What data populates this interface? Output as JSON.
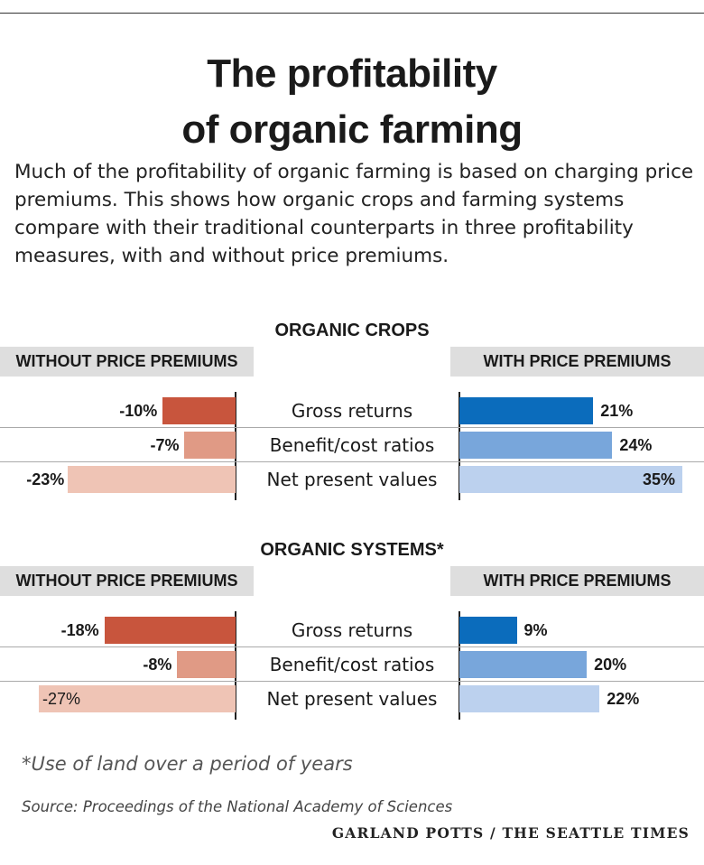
{
  "header": {
    "title_line1": "The profitability",
    "title_line2": "of organic farming",
    "intro": "Much of the profitability of organic farming is based on charging price premiums. This shows how organic crops and farming systems compare with their traditional counterparts in three profitability measures, with and without price premiums."
  },
  "colors": {
    "without_dark": "#c8553d",
    "without_mid": "#e09a85",
    "without_light": "#efc4b5",
    "with_dark": "#0b6cbc",
    "with_mid": "#78a6db",
    "with_light": "#bcd1ee",
    "header_bg": "#dedede"
  },
  "chart_data": [
    {
      "type": "bar",
      "title": "ORGANIC CROPS",
      "categories": [
        "Gross returns",
        "Benefit/cost ratios",
        "Net present values"
      ],
      "series": [
        {
          "name": "WITHOUT PRICE PREMIUMS",
          "values": [
            -10,
            -7,
            -23
          ],
          "labels": [
            "-10%",
            "-7%",
            "-23%"
          ]
        },
        {
          "name": "WITH PRICE PREMIUMS",
          "values": [
            21,
            24,
            35
          ],
          "labels": [
            "21%",
            "24%",
            "35%"
          ]
        }
      ]
    },
    {
      "type": "bar",
      "title": "ORGANIC SYSTEMS*",
      "categories": [
        "Gross returns",
        "Benefit/cost ratios",
        "Net present values"
      ],
      "series": [
        {
          "name": "WITHOUT PRICE PREMIUMS",
          "values": [
            -18,
            -8,
            -27
          ],
          "labels": [
            "-18%",
            "-8%",
            "-27%"
          ]
        },
        {
          "name": "WITH PRICE PREMIUMS",
          "values": [
            9,
            20,
            22
          ],
          "labels": [
            "9%",
            "20%",
            "22%"
          ]
        }
      ]
    }
  ],
  "footer": {
    "footnote": "*Use of land over a period of years",
    "source": "Source: Proceedings of the National Academy of Sciences",
    "credit": "GARLAND POTTS / THE SEATTLE TIMES"
  }
}
